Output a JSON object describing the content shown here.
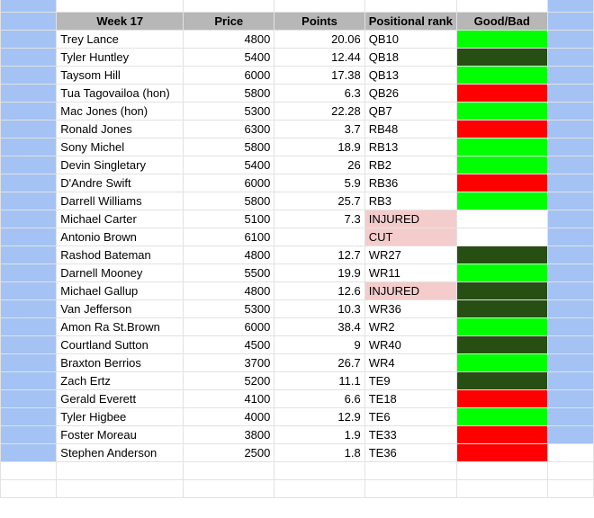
{
  "colors": {
    "good": "#00ff00",
    "ok": "#274e13",
    "bad": "#ff0000",
    "flag": "#f4cccc",
    "side": "#a4c2f4"
  },
  "headers": [
    "Week 17",
    "Price",
    "Points",
    "Positional rank",
    "Good/Bad"
  ],
  "rows": [
    {
      "name": "Trey Lance",
      "price": "4800",
      "points": "20.06",
      "rank": "QB10",
      "rating": "good"
    },
    {
      "name": "Tyler Huntley",
      "price": "5400",
      "points": "12.44",
      "rank": "QB18",
      "rating": "ok"
    },
    {
      "name": "Taysom Hill",
      "price": "6000",
      "points": "17.38",
      "rank": "QB13",
      "rating": "good"
    },
    {
      "name": "Tua Tagovailoa (hon)",
      "price": "5800",
      "points": "6.3",
      "rank": "QB26",
      "rating": "bad"
    },
    {
      "name": "Mac Jones (hon)",
      "price": "5300",
      "points": "22.28",
      "rank": "QB7",
      "rating": "good"
    },
    {
      "name": "Ronald Jones",
      "price": "6300",
      "points": "3.7",
      "rank": "RB48",
      "rating": "bad"
    },
    {
      "name": "Sony Michel",
      "price": "5800",
      "points": "18.9",
      "rank": "RB13",
      "rating": "good"
    },
    {
      "name": "Devin Singletary",
      "price": "5400",
      "points": "26",
      "rank": "RB2",
      "rating": "good"
    },
    {
      "name": "D'Andre Swift",
      "price": "6000",
      "points": "5.9",
      "rank": "RB36",
      "rating": "bad"
    },
    {
      "name": "Darrell Williams",
      "price": "5800",
      "points": "25.7",
      "rank": "RB3",
      "rating": "good"
    },
    {
      "name": "Michael Carter",
      "price": "5100",
      "points": "7.3",
      "rank": "INJURED",
      "rating": "",
      "flag": true
    },
    {
      "name": "Antonio Brown",
      "price": "6100",
      "points": "",
      "rank": "CUT",
      "rating": "",
      "flag": true
    },
    {
      "name": "Rashod Bateman",
      "price": "4800",
      "points": "12.7",
      "rank": "WR27",
      "rating": "ok"
    },
    {
      "name": "Darnell Mooney",
      "price": "5500",
      "points": "19.9",
      "rank": "WR11",
      "rating": "good"
    },
    {
      "name": "Michael Gallup",
      "price": "4800",
      "points": "12.6",
      "rank": "INJURED",
      "rating": "ok",
      "flag": true
    },
    {
      "name": "Van Jefferson",
      "price": "5300",
      "points": "10.3",
      "rank": "WR36",
      "rating": "ok"
    },
    {
      "name": "Amon Ra St.Brown",
      "price": "6000",
      "points": "38.4",
      "rank": "WR2",
      "rating": "good"
    },
    {
      "name": "Courtland Sutton",
      "price": "4500",
      "points": "9",
      "rank": "WR40",
      "rating": "ok"
    },
    {
      "name": "Braxton Berrios",
      "price": "3700",
      "points": "26.7",
      "rank": "WR4",
      "rating": "good"
    },
    {
      "name": "Zach Ertz",
      "price": "5200",
      "points": "11.1",
      "rank": "TE9",
      "rating": "ok"
    },
    {
      "name": "Gerald Everett",
      "price": "4100",
      "points": "6.6",
      "rank": "TE18",
      "rating": "bad"
    },
    {
      "name": "Tyler Higbee",
      "price": "4000",
      "points": "12.9",
      "rank": "TE6",
      "rating": "good"
    },
    {
      "name": "Foster Moreau",
      "price": "3800",
      "points": "1.9",
      "rank": "TE33",
      "rating": "bad"
    },
    {
      "name": "Stephen Anderson",
      "price": "2500",
      "points": "1.8",
      "rank": "TE36",
      "rating": "bad"
    }
  ]
}
